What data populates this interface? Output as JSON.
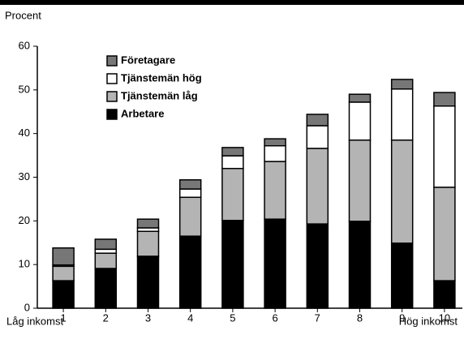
{
  "chart_data": {
    "type": "stacked_bar",
    "y_label": "Procent",
    "categories": [
      "1",
      "2",
      "3",
      "4",
      "5",
      "6",
      "7",
      "8",
      "9",
      "10"
    ],
    "annotations": [
      "Låg inkomst",
      "Hög inkomst"
    ],
    "series": [
      {
        "name": "Arbetare",
        "color": "#000000",
        "values": [
          6.3,
          9.1,
          11.9,
          16.5,
          20.1,
          20.4,
          19.3,
          19.9,
          14.9,
          6.3
        ]
      },
      {
        "name": "Tjänstemän låg",
        "color": "#b4b4b4",
        "values": [
          3.3,
          3.5,
          5.7,
          8.9,
          11.9,
          13.2,
          17.3,
          18.6,
          23.6,
          21.4
        ]
      },
      {
        "name": "Tjänstemän hög",
        "color": "#ffffff",
        "values": [
          0.3,
          0.9,
          0.8,
          1.9,
          2.9,
          3.6,
          5.2,
          8.7,
          11.7,
          18.6
        ]
      },
      {
        "name": "Företagare",
        "color": "#777777",
        "values": [
          3.9,
          2.3,
          2.0,
          2.1,
          1.9,
          1.6,
          2.6,
          1.8,
          2.2,
          3.1
        ]
      }
    ],
    "ylim": [
      0,
      60
    ],
    "yticks": [
      0,
      10,
      20,
      30,
      40,
      50,
      60
    ]
  }
}
